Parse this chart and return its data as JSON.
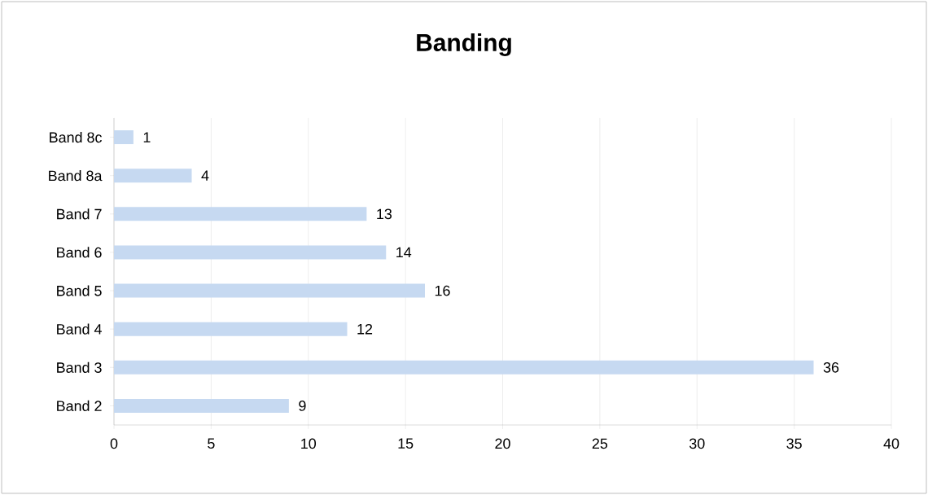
{
  "chart_data": {
    "type": "bar",
    "orientation": "horizontal",
    "title": "Banding",
    "categories": [
      "Band 8c",
      "Band 8a",
      "Band 7",
      "Band 6",
      "Band 5",
      "Band 4",
      "Band 3",
      "Band 2"
    ],
    "values": [
      1,
      4,
      13,
      14,
      16,
      12,
      36,
      9
    ],
    "color": "#c6d9f1",
    "xlim": [
      0,
      40
    ],
    "xticks": [
      0,
      5,
      10,
      15,
      20,
      25,
      30,
      35,
      40
    ],
    "grid": "x",
    "data_labels": true
  }
}
